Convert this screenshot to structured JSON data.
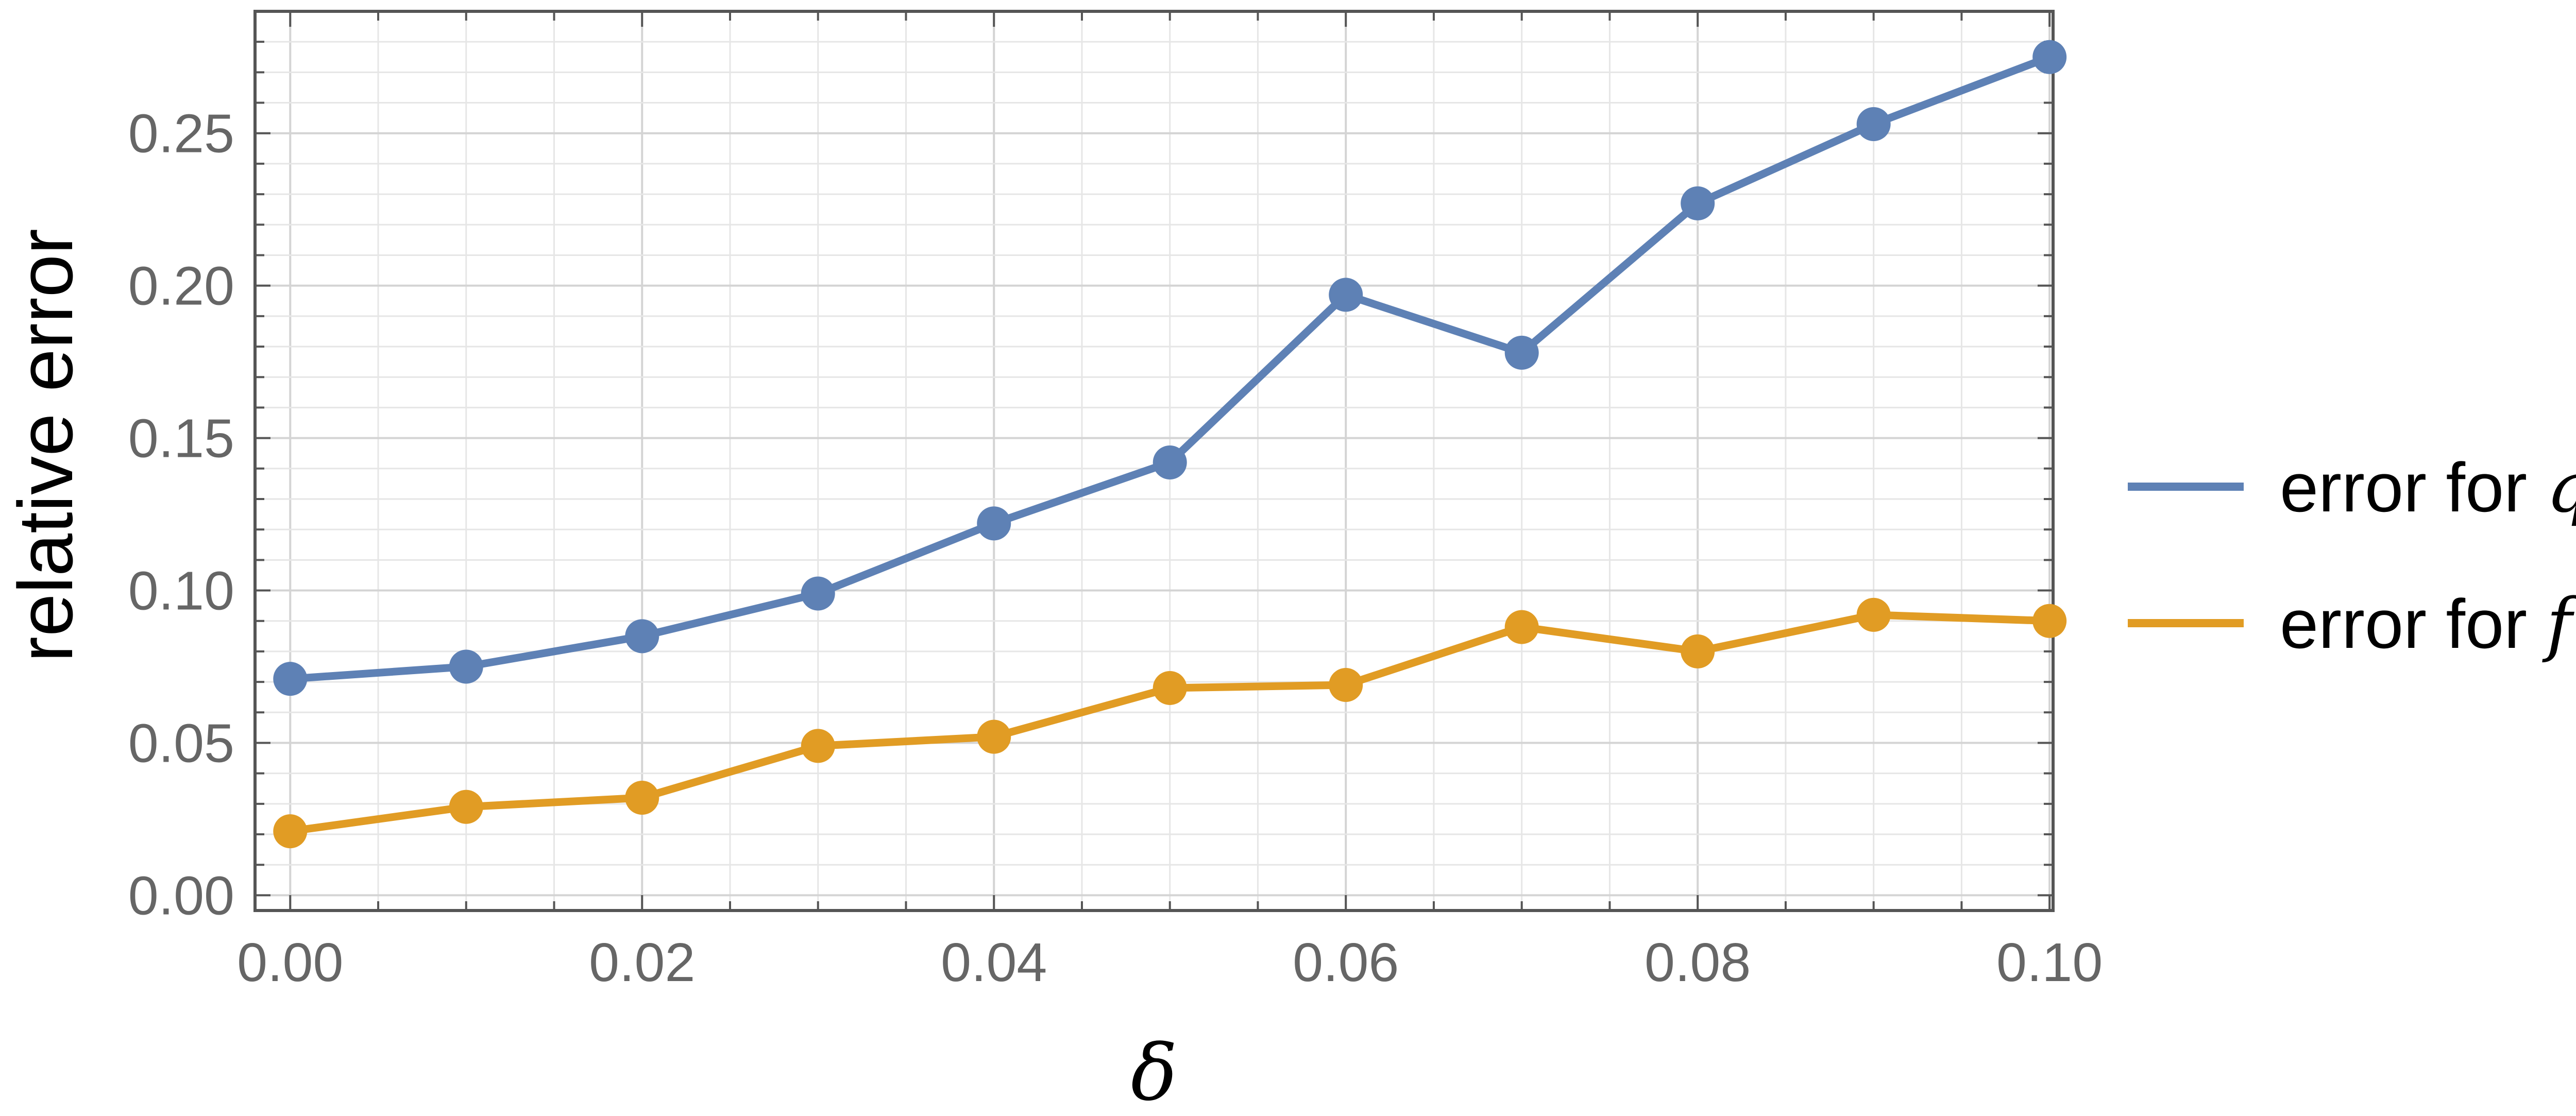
{
  "chart_data": {
    "type": "line",
    "title": "",
    "xlabel": "δ",
    "ylabel": "relative error",
    "xlim": [
      -0.002,
      0.1002
    ],
    "ylim": [
      -0.005,
      0.29
    ],
    "x_ticks": [
      "0.00",
      "0.02",
      "0.04",
      "0.06",
      "0.08",
      "0.10"
    ],
    "y_ticks": [
      "0.00",
      "0.05",
      "0.10",
      "0.15",
      "0.20",
      "0.25"
    ],
    "grid": true,
    "legend_position": "right",
    "x": [
      0.0,
      0.01,
      0.02,
      0.03,
      0.04,
      0.05,
      0.06,
      0.07,
      0.08,
      0.09,
      0.1
    ],
    "series": [
      {
        "name": "error for q",
        "name_prefix": "error for ",
        "name_symbol": "q",
        "color": "#5e81b5",
        "values": [
          0.071,
          0.075,
          0.085,
          0.099,
          0.122,
          0.142,
          0.197,
          0.178,
          0.227,
          0.253,
          0.275
        ]
      },
      {
        "name": "error for f",
        "name_prefix": "error for ",
        "name_symbol": "f",
        "color": "#e19c24",
        "values": [
          0.021,
          0.029,
          0.032,
          0.049,
          0.052,
          0.068,
          0.069,
          0.088,
          0.08,
          0.092,
          0.09
        ]
      }
    ]
  }
}
